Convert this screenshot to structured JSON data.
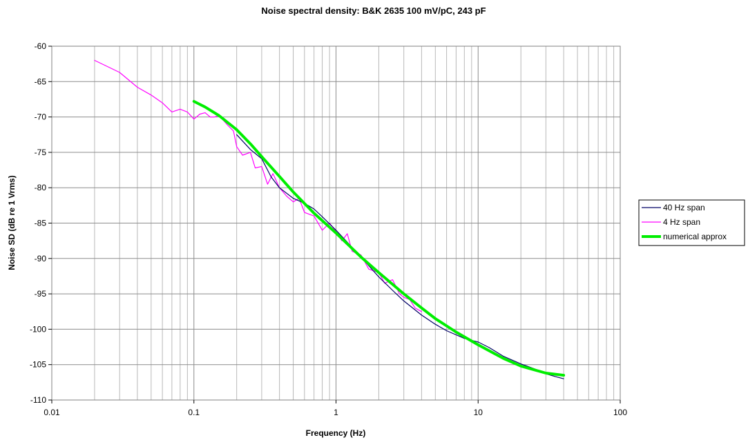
{
  "chart_data": {
    "type": "line",
    "title": "Noise spectral density:  B&K 2635 100 mV/pC, 243 pF",
    "xlabel": "Frequency (Hz)",
    "ylabel": "Noise SD (dB re 1 Vrms)",
    "x_scale": "log",
    "xlim": [
      0.01,
      100
    ],
    "ylim": [
      -110,
      -60
    ],
    "x_ticks": [
      "0.01",
      "0.1",
      "1",
      "10",
      "100"
    ],
    "y_ticks": [
      "-60",
      "-65",
      "-70",
      "-75",
      "-80",
      "-85",
      "-90",
      "-95",
      "-100",
      "-105",
      "-110"
    ],
    "grid": true,
    "legend_position": "right",
    "series": [
      {
        "name": "40 Hz span",
        "color": "#000066",
        "x": [
          0.2,
          0.25,
          0.3,
          0.35,
          0.4,
          0.5,
          0.6,
          0.7,
          0.8,
          1,
          1.2,
          1.5,
          2,
          2.5,
          3,
          4,
          5,
          6,
          8,
          10,
          12,
          15,
          20,
          25,
          30,
          35,
          40
        ],
        "y": [
          -72.5,
          -74.6,
          -75.9,
          -78.5,
          -80.0,
          -81.5,
          -82.2,
          -83.0,
          -84.1,
          -86.0,
          -87.7,
          -89.8,
          -92.6,
          -94.5,
          -96.0,
          -98.0,
          -99.3,
          -100.2,
          -101.3,
          -101.8,
          -102.6,
          -103.8,
          -104.9,
          -105.6,
          -106.3,
          -106.7,
          -107.0
        ]
      },
      {
        "name": "4 Hz span",
        "color": "#ff00ff",
        "x": [
          0.02,
          0.03,
          0.04,
          0.05,
          0.06,
          0.07,
          0.08,
          0.09,
          0.1,
          0.11,
          0.12,
          0.13,
          0.14,
          0.15,
          0.17,
          0.19,
          0.2,
          0.22,
          0.25,
          0.27,
          0.3,
          0.33,
          0.36,
          0.4,
          0.45,
          0.5,
          0.55,
          0.6,
          0.7,
          0.8,
          0.9,
          1.0,
          1.1,
          1.2,
          1.3,
          1.5,
          1.7,
          2.0,
          2.2,
          2.5,
          2.8,
          3.0,
          3.3,
          3.6,
          4.0
        ],
        "y": [
          -62.0,
          -63.7,
          -65.8,
          -66.9,
          -68.0,
          -69.3,
          -68.9,
          -69.3,
          -70.3,
          -69.6,
          -69.4,
          -70.0,
          -70.0,
          -69.8,
          -71.0,
          -72.0,
          -74.2,
          -75.4,
          -75.0,
          -77.2,
          -77.0,
          -79.5,
          -78.0,
          -80.0,
          -81.2,
          -82.0,
          -81.5,
          -83.5,
          -84.0,
          -86.0,
          -85.0,
          -86.2,
          -87.5,
          -86.5,
          -89.0,
          -89.5,
          -91.5,
          -92.0,
          -93.5,
          -93.0,
          -95.0,
          -95.5,
          -95.8,
          -97.0,
          -97.5
        ]
      },
      {
        "name": "numerical approx",
        "color": "#00ee00",
        "x": [
          0.1,
          0.12,
          0.15,
          0.2,
          0.25,
          0.3,
          0.4,
          0.5,
          0.7,
          1,
          1.5,
          2,
          3,
          4,
          5,
          7,
          10,
          15,
          20,
          30,
          40
        ],
        "y": [
          -67.8,
          -68.6,
          -69.8,
          -71.8,
          -73.8,
          -75.6,
          -78.4,
          -80.6,
          -83.6,
          -86.4,
          -89.8,
          -92.0,
          -95.0,
          -97.0,
          -98.5,
          -100.4,
          -102.2,
          -104.1,
          -105.2,
          -106.2,
          -106.5
        ]
      }
    ]
  }
}
